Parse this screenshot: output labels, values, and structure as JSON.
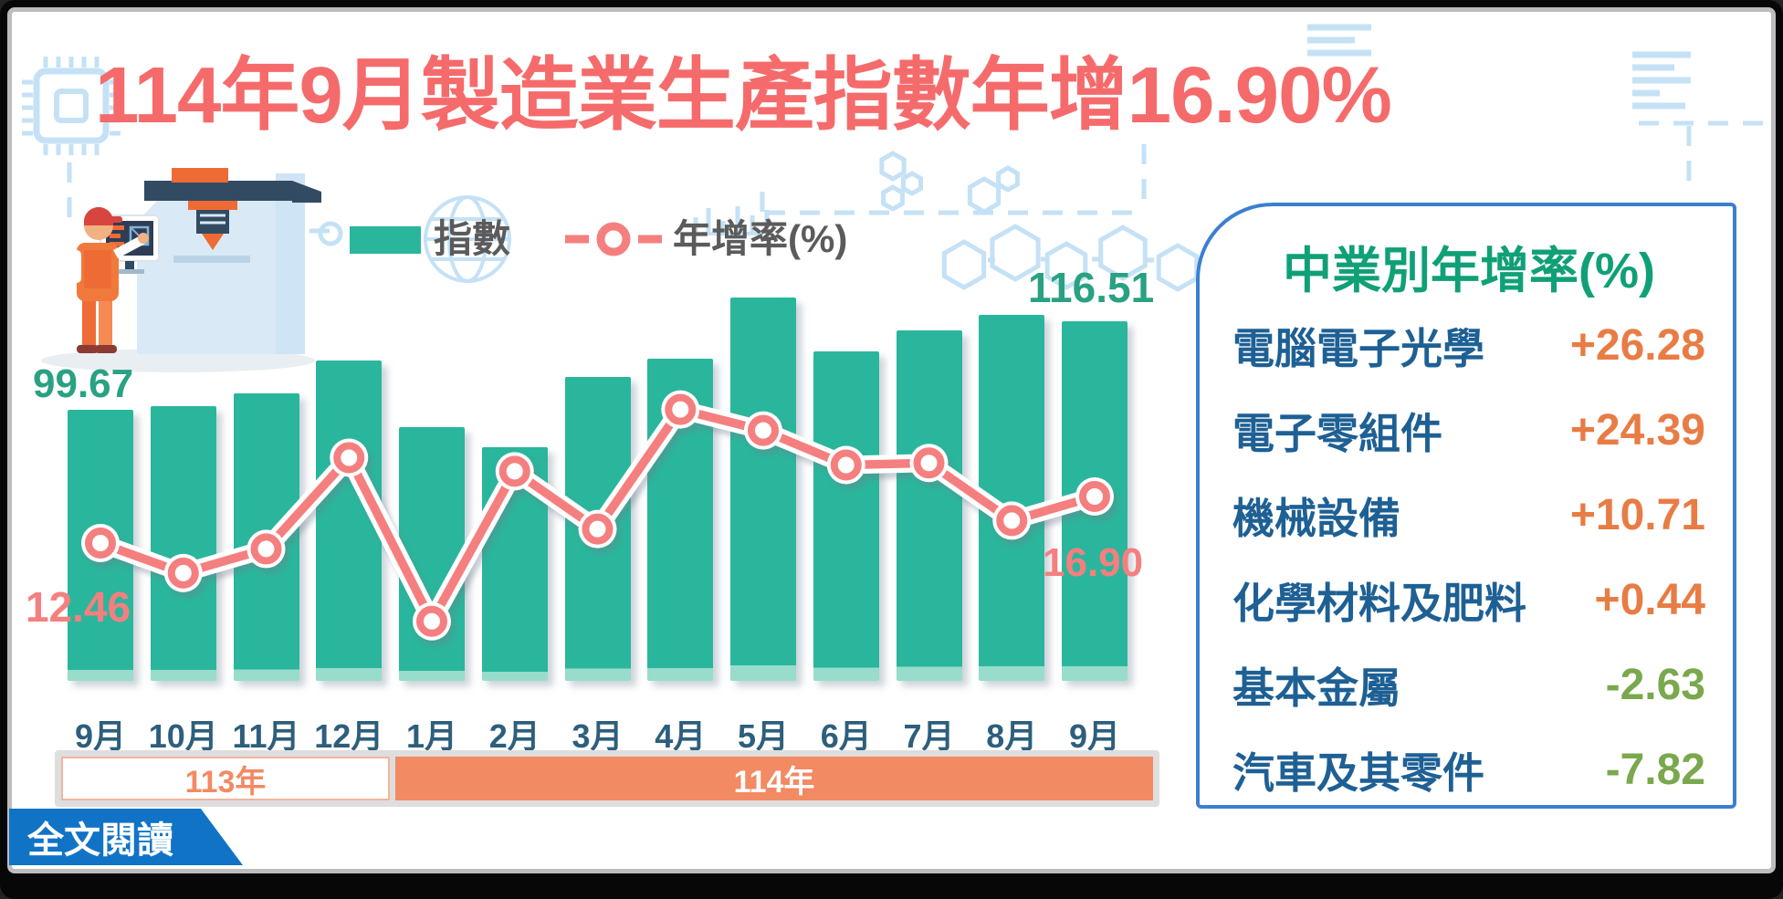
{
  "title": "114年9月製造業生產指數年增16.90%",
  "legend": {
    "index_label": "指數",
    "growth_label": "年增率(%)"
  },
  "chart_data": {
    "type": "bar+line",
    "title": "114年9月製造業生產指數年增16.90%",
    "categories": [
      "9月",
      "10月",
      "11月",
      "12月",
      "1月",
      "2月",
      "3月",
      "4月",
      "5月",
      "6月",
      "7月",
      "8月",
      "9月"
    ],
    "series": [
      {
        "name": "指數",
        "type": "bar",
        "values": [
          99.67,
          100.4,
          102.8,
          109.0,
          96.4,
          92.6,
          105.9,
          109.4,
          121.0,
          110.8,
          114.8,
          117.7,
          116.51
        ]
      },
      {
        "name": "年增率(%)",
        "type": "line",
        "values": [
          12.46,
          9.6,
          11.9,
          20.6,
          5.0,
          19.3,
          13.8,
          25.2,
          23.2,
          19.9,
          20.1,
          14.6,
          16.9
        ]
      }
    ],
    "year_bands": [
      {
        "label": "113年",
        "month_span": 4
      },
      {
        "label": "114年",
        "month_span": 9
      }
    ],
    "legend_position": "top",
    "y_axis_shown": false,
    "grid": false
  },
  "annotations": {
    "first_index": "99.67",
    "last_index": "116.51",
    "first_growth": "12.46",
    "last_growth": "16.90"
  },
  "panel": {
    "title": "中業別年增率(%)",
    "rows": [
      {
        "label": "電腦電子光學",
        "value": "+26.28"
      },
      {
        "label": "電子零組件",
        "value": "+24.39"
      },
      {
        "label": "機械設備",
        "value": "+10.71"
      },
      {
        "label": "化學材料及肥料",
        "value": "+0.44"
      },
      {
        "label": "基本金屬",
        "value": "-2.63"
      },
      {
        "label": "汽車及其零件",
        "value": "-7.82"
      }
    ]
  },
  "footer": {
    "read_more": "全文閱讀"
  },
  "colors": {
    "title": "#f56b6b",
    "bar": "#2ab69c",
    "line": "#f57f7f",
    "index_label_green": "#29a183",
    "growth_label_salmon": "#f57f7f",
    "month_label": "#2d5f7c",
    "legend_text": "#5b5b5b",
    "band_orange": "#f28a63",
    "panel_border": "#3b7fd0",
    "panel_title_green": "#10a077",
    "industry_label_blue": "#1e6094",
    "positive_orange": "#e87c45",
    "negative_green": "#7aa84e",
    "button_blue": "#1173c5",
    "decoration_blue": "#c5e1f6"
  }
}
